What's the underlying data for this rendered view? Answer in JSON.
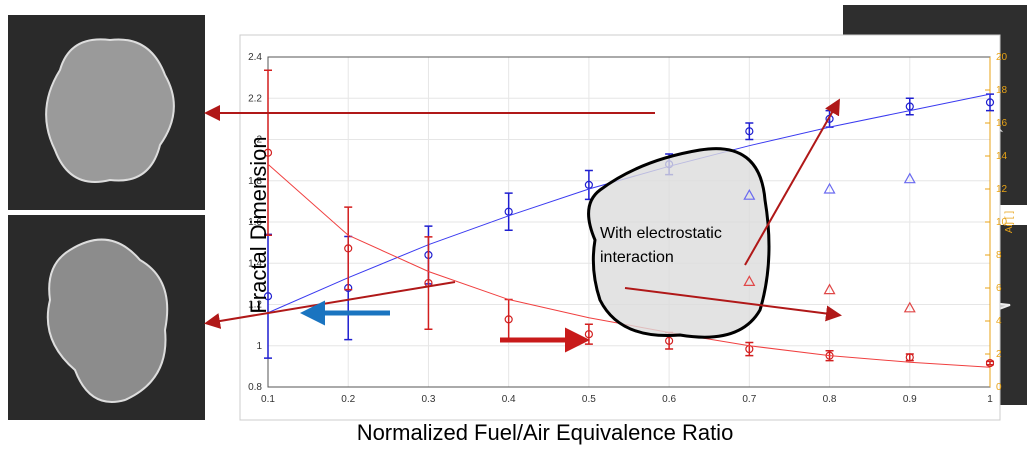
{
  "chart_data": {
    "type": "line",
    "x_label": "Normalized Fuel/Air Equivalence Ratio",
    "y_label": "Fractal Dimension",
    "y2_label": "Aij [ ]",
    "annotation": [
      "With electrostatic",
      "interaction"
    ],
    "x": [
      0.1,
      0.2,
      0.3,
      0.4,
      0.5,
      0.6,
      0.7,
      0.8,
      0.9,
      1
    ],
    "xlim": [
      0.1,
      1
    ],
    "xticks": [
      0.1,
      0.2,
      0.3,
      0.4,
      0.5,
      0.6,
      0.7,
      0.8,
      0.9,
      1
    ],
    "ylim": [
      0.8,
      2.4
    ],
    "yticks": [
      0.8,
      1,
      1.2,
      1.4,
      1.6,
      1.8,
      2,
      2.2,
      2.4
    ],
    "y2lim": [
      0,
      20
    ],
    "y2ticks": [
      0,
      2,
      4,
      6,
      8,
      10,
      12,
      14,
      16,
      18,
      20
    ],
    "grid": true,
    "series": [
      {
        "color": "#1f1fd0",
        "marker": "circle",
        "values": [
          1.24,
          1.28,
          1.44,
          1.65,
          1.78,
          1.88,
          2.04,
          2.1,
          2.16,
          2.18
        ],
        "errors": [
          0.3,
          0.25,
          0.14,
          0.09,
          0.07,
          0.05,
          0.04,
          0.04,
          0.04,
          0.04
        ]
      },
      {
        "color": "#3a3af0",
        "marker": "none",
        "values": [
          1.16,
          1.33,
          1.49,
          1.63,
          1.76,
          1.87,
          1.97,
          2.06,
          2.14,
          2.22
        ]
      },
      {
        "color": "#d21f1f",
        "marker": "circle",
        "axis": "y2",
        "values": [
          14.2,
          8.4,
          6.3,
          4.1,
          3.2,
          2.8,
          2.3,
          1.9,
          1.8,
          1.45
        ],
        "errors": [
          5,
          2.5,
          2.8,
          1.2,
          0.6,
          0.5,
          0.4,
          0.3,
          0.2,
          0.1
        ]
      },
      {
        "color": "#f04040",
        "marker": "none",
        "axis": "y2",
        "values": [
          13.5,
          9.2,
          7,
          5.3,
          4.2,
          3.3,
          2.5,
          1.9,
          1.5,
          1.2
        ]
      },
      {
        "color": "#6a6af0",
        "marker": "triangle",
        "values": [
          null,
          null,
          null,
          null,
          null,
          null,
          1.73,
          1.76,
          1.81,
          null
        ]
      },
      {
        "color": "#e04848",
        "marker": "triangle",
        "axis": "y2",
        "values": [
          null,
          null,
          null,
          null,
          null,
          null,
          6.4,
          5.9,
          4.8,
          null
        ]
      }
    ]
  }
}
